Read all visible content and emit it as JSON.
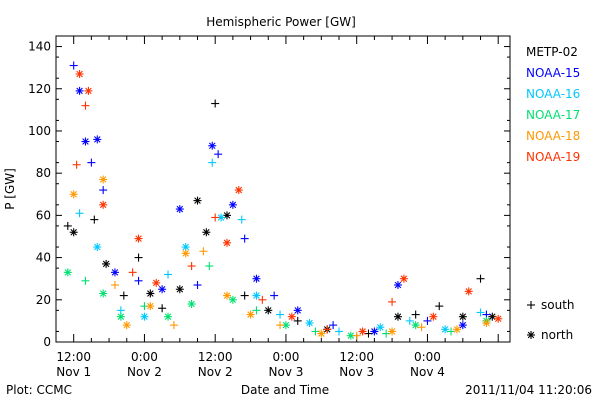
{
  "chart_data": {
    "type": "scatter",
    "title": "Hemispheric Power [GW]",
    "ylabel": "P [GW]",
    "xlabel": "Date and Time",
    "ylim": [
      0,
      145
    ],
    "yticks": [
      0,
      20,
      40,
      60,
      80,
      100,
      120,
      140
    ],
    "xlim_hours": [
      -3,
      74
    ],
    "x_unit": "hours from 2011-11-01 12:00 UT",
    "xticks": [
      {
        "h": 0,
        "time": "12:00",
        "date": "Nov 1"
      },
      {
        "h": 12,
        "time": "0:00",
        "date": "Nov 2"
      },
      {
        "h": 24,
        "time": "12:00",
        "date": "Nov 2"
      },
      {
        "h": 36,
        "time": "0:00",
        "date": "Nov 3"
      },
      {
        "h": 48,
        "time": "12:00",
        "date": "Nov 3"
      },
      {
        "h": 60,
        "time": "0:00",
        "date": "Nov 4"
      }
    ],
    "footer_left": "Plot: CCMC",
    "footer_right": "2011/11/04 11:20:06",
    "marker_legend": [
      {
        "symbol": "+",
        "label": "south"
      },
      {
        "symbol": "*",
        "label": "north"
      }
    ],
    "series": [
      {
        "name": "METP-02",
        "color": "#000000",
        "points": [
          {
            "x": -1,
            "y": 55,
            "m": "+"
          },
          {
            "x": 0,
            "y": 52,
            "m": "*"
          },
          {
            "x": 3.5,
            "y": 58,
            "m": "+"
          },
          {
            "x": 5.5,
            "y": 37,
            "m": "*"
          },
          {
            "x": 8.5,
            "y": 22,
            "m": "+"
          },
          {
            "x": 11,
            "y": 40,
            "m": "+"
          },
          {
            "x": 13,
            "y": 23,
            "m": "*"
          },
          {
            "x": 15,
            "y": 16,
            "m": "+"
          },
          {
            "x": 18,
            "y": 25,
            "m": "*"
          },
          {
            "x": 21,
            "y": 67,
            "m": "*"
          },
          {
            "x": 22.5,
            "y": 52,
            "m": "*"
          },
          {
            "x": 24,
            "y": 113,
            "m": "+"
          },
          {
            "x": 26,
            "y": 60,
            "m": "*"
          },
          {
            "x": 29,
            "y": 22,
            "m": "+"
          },
          {
            "x": 33,
            "y": 15,
            "m": "*"
          },
          {
            "x": 38,
            "y": 10,
            "m": "+"
          },
          {
            "x": 43,
            "y": 6,
            "m": "*"
          },
          {
            "x": 50,
            "y": 4,
            "m": "+"
          },
          {
            "x": 55,
            "y": 12,
            "m": "*"
          },
          {
            "x": 58,
            "y": 13,
            "m": "+"
          },
          {
            "x": 62,
            "y": 17,
            "m": "+"
          },
          {
            "x": 66,
            "y": 12,
            "m": "*"
          },
          {
            "x": 69,
            "y": 30,
            "m": "+"
          },
          {
            "x": 71,
            "y": 12,
            "m": "*"
          }
        ]
      },
      {
        "name": "NOAA-15",
        "color": "#0000ff",
        "points": [
          {
            "x": 0,
            "y": 131,
            "m": "+"
          },
          {
            "x": 1,
            "y": 119,
            "m": "*"
          },
          {
            "x": 2,
            "y": 95,
            "m": "*"
          },
          {
            "x": 3,
            "y": 85,
            "m": "+"
          },
          {
            "x": 4,
            "y": 96,
            "m": "*"
          },
          {
            "x": 5,
            "y": 72,
            "m": "+"
          },
          {
            "x": 7,
            "y": 33,
            "m": "*"
          },
          {
            "x": 11,
            "y": 29,
            "m": "+"
          },
          {
            "x": 15,
            "y": 25,
            "m": "*"
          },
          {
            "x": 18,
            "y": 63,
            "m": "*"
          },
          {
            "x": 21,
            "y": 27,
            "m": "+"
          },
          {
            "x": 23.5,
            "y": 93,
            "m": "*"
          },
          {
            "x": 24.5,
            "y": 89,
            "m": "+"
          },
          {
            "x": 27,
            "y": 65,
            "m": "*"
          },
          {
            "x": 29,
            "y": 49,
            "m": "+"
          },
          {
            "x": 31,
            "y": 30,
            "m": "*"
          },
          {
            "x": 34,
            "y": 22,
            "m": "+"
          },
          {
            "x": 38,
            "y": 15,
            "m": "*"
          },
          {
            "x": 44,
            "y": 8,
            "m": "+"
          },
          {
            "x": 51,
            "y": 5,
            "m": "*"
          },
          {
            "x": 55,
            "y": 27,
            "m": "*"
          },
          {
            "x": 60,
            "y": 10,
            "m": "+"
          },
          {
            "x": 66,
            "y": 8,
            "m": "*"
          },
          {
            "x": 70,
            "y": 13,
            "m": "+"
          }
        ]
      },
      {
        "name": "NOAA-16",
        "color": "#00c8ff",
        "points": [
          {
            "x": 1,
            "y": 61,
            "m": "+"
          },
          {
            "x": 4,
            "y": 45,
            "m": "*"
          },
          {
            "x": 8,
            "y": 15,
            "m": "+"
          },
          {
            "x": 12,
            "y": 12,
            "m": "*"
          },
          {
            "x": 16,
            "y": 32,
            "m": "+"
          },
          {
            "x": 19,
            "y": 45,
            "m": "*"
          },
          {
            "x": 23.5,
            "y": 85,
            "m": "+"
          },
          {
            "x": 25,
            "y": 59,
            "m": "*"
          },
          {
            "x": 28.5,
            "y": 58,
            "m": "+"
          },
          {
            "x": 31,
            "y": 22,
            "m": "*"
          },
          {
            "x": 35,
            "y": 13,
            "m": "+"
          },
          {
            "x": 40,
            "y": 9,
            "m": "*"
          },
          {
            "x": 45,
            "y": 5,
            "m": "+"
          },
          {
            "x": 52,
            "y": 7,
            "m": "*"
          },
          {
            "x": 57,
            "y": 10,
            "m": "+"
          },
          {
            "x": 63,
            "y": 6,
            "m": "*"
          },
          {
            "x": 69,
            "y": 14,
            "m": "+"
          }
        ]
      },
      {
        "name": "NOAA-17",
        "color": "#00e070",
        "points": [
          {
            "x": -1,
            "y": 33,
            "m": "*"
          },
          {
            "x": 2,
            "y": 29,
            "m": "+"
          },
          {
            "x": 5,
            "y": 23,
            "m": "*"
          },
          {
            "x": 8,
            "y": 12,
            "m": "*"
          },
          {
            "x": 12,
            "y": 17,
            "m": "+"
          },
          {
            "x": 16,
            "y": 12,
            "m": "*"
          },
          {
            "x": 20,
            "y": 18,
            "m": "*"
          },
          {
            "x": 23,
            "y": 36,
            "m": "+"
          },
          {
            "x": 27,
            "y": 20,
            "m": "*"
          },
          {
            "x": 31,
            "y": 15,
            "m": "+"
          },
          {
            "x": 36,
            "y": 8,
            "m": "*"
          },
          {
            "x": 41,
            "y": 5,
            "m": "+"
          },
          {
            "x": 47,
            "y": 3,
            "m": "*"
          },
          {
            "x": 53,
            "y": 4,
            "m": "+"
          },
          {
            "x": 58,
            "y": 8,
            "m": "*"
          },
          {
            "x": 64,
            "y": 5,
            "m": "+"
          },
          {
            "x": 70,
            "y": 10,
            "m": "*"
          }
        ]
      },
      {
        "name": "NOAA-18",
        "color": "#ff9900",
        "points": [
          {
            "x": 0,
            "y": 70,
            "m": "*"
          },
          {
            "x": 5,
            "y": 77,
            "m": "*"
          },
          {
            "x": 7,
            "y": 27,
            "m": "+"
          },
          {
            "x": 9,
            "y": 8,
            "m": "*"
          },
          {
            "x": 13,
            "y": 17,
            "m": "*"
          },
          {
            "x": 17,
            "y": 8,
            "m": "+"
          },
          {
            "x": 19,
            "y": 42,
            "m": "*"
          },
          {
            "x": 22,
            "y": 43,
            "m": "+"
          },
          {
            "x": 26,
            "y": 22,
            "m": "*"
          },
          {
            "x": 30,
            "y": 13,
            "m": "*"
          },
          {
            "x": 35,
            "y": 8,
            "m": "+"
          },
          {
            "x": 42,
            "y": 4,
            "m": "*"
          },
          {
            "x": 48,
            "y": 3,
            "m": "+"
          },
          {
            "x": 54,
            "y": 5,
            "m": "*"
          },
          {
            "x": 59,
            "y": 7,
            "m": "+"
          },
          {
            "x": 65,
            "y": 6,
            "m": "*"
          },
          {
            "x": 70,
            "y": 9,
            "m": "*"
          }
        ]
      },
      {
        "name": "NOAA-19",
        "color": "#ff3300",
        "points": [
          {
            "x": 0.5,
            "y": 84,
            "m": "+"
          },
          {
            "x": 1,
            "y": 127,
            "m": "*"
          },
          {
            "x": 2,
            "y": 112,
            "m": "+"
          },
          {
            "x": 2.5,
            "y": 119,
            "m": "*"
          },
          {
            "x": 5,
            "y": 65,
            "m": "*"
          },
          {
            "x": 10,
            "y": 33,
            "m": "+"
          },
          {
            "x": 11,
            "y": 49,
            "m": "*"
          },
          {
            "x": 14,
            "y": 28,
            "m": "*"
          },
          {
            "x": 20,
            "y": 36,
            "m": "+"
          },
          {
            "x": 24,
            "y": 59,
            "m": "+"
          },
          {
            "x": 26,
            "y": 47,
            "m": "*"
          },
          {
            "x": 28,
            "y": 72,
            "m": "*"
          },
          {
            "x": 32,
            "y": 20,
            "m": "+"
          },
          {
            "x": 37,
            "y": 12,
            "m": "*"
          },
          {
            "x": 43,
            "y": 6,
            "m": "+"
          },
          {
            "x": 49,
            "y": 5,
            "m": "*"
          },
          {
            "x": 54,
            "y": 19,
            "m": "+"
          },
          {
            "x": 56,
            "y": 30,
            "m": "*"
          },
          {
            "x": 61,
            "y": 12,
            "m": "*"
          },
          {
            "x": 67,
            "y": 24,
            "m": "*"
          },
          {
            "x": 72,
            "y": 11,
            "m": "*"
          }
        ]
      }
    ]
  }
}
